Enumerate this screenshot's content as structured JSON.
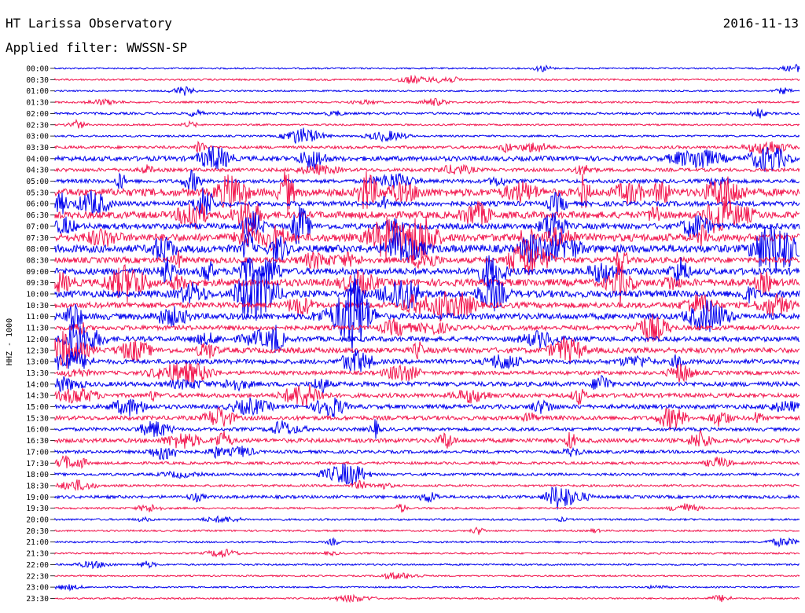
{
  "header": {
    "title": "HT Larissa Observatory",
    "date": "2016-11-13",
    "filter": "Applied filter: WWSSN-SP"
  },
  "chart_data": {
    "type": "line",
    "title": "HT Larissa Observatory",
    "date": "2016-11-13",
    "filter": "WWSSN-SP",
    "ylabel": "HHZ - 1000",
    "y_ticks": [
      "00:00",
      "00:30",
      "01:00",
      "01:30",
      "02:00",
      "02:30",
      "03:00",
      "03:30",
      "04:00",
      "04:30",
      "05:00",
      "05:30",
      "06:00",
      "06:30",
      "07:00",
      "07:30",
      "08:00",
      "08:30",
      "09:00",
      "09:30",
      "10:00",
      "10:30",
      "11:00",
      "11:30",
      "12:00",
      "12:30",
      "13:00",
      "13:30",
      "14:00",
      "14:30",
      "15:00",
      "15:30",
      "16:00",
      "16:30",
      "17:00",
      "17:30",
      "18:00",
      "18:30",
      "19:00",
      "19:30",
      "20:00",
      "20:30",
      "21:00",
      "21:30",
      "22:00",
      "22:30",
      "23:00",
      "23:30"
    ],
    "colors": [
      "#0000ee",
      "#f2164e"
    ],
    "grid": false,
    "series_amplitude": [
      0.8,
      0.9,
      0.8,
      1.0,
      1.2,
      0.9,
      1.0,
      1.5,
      2.5,
      1.8,
      2.0,
      4.0,
      2.6,
      3.6,
      3.0,
      4.0,
      4.0,
      3.0,
      3.5,
      3.8,
      3.6,
      3.0,
      3.2,
      2.4,
      2.6,
      2.8,
      2.4,
      2.0,
      2.4,
      2.2,
      2.2,
      2.2,
      1.8,
      2.2,
      1.6,
      1.4,
      1.4,
      1.2,
      1.6,
      1.0,
      1.0,
      0.9,
      0.9,
      0.9,
      0.9,
      0.8,
      0.8,
      0.8
    ]
  }
}
